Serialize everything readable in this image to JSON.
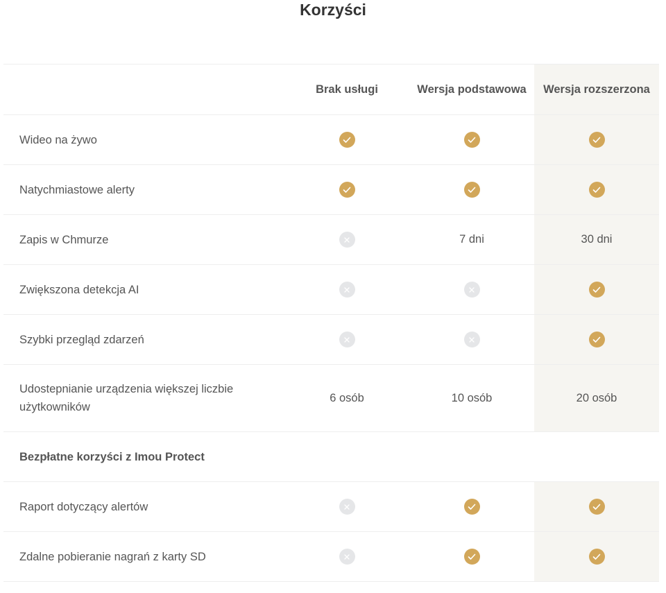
{
  "title": "Korzyści",
  "colors": {
    "accent": "#d2a75a",
    "unavailable": "#e5e6e8",
    "highlight": "#f6f5f1"
  },
  "columns": [
    "",
    "Brak usługi",
    "Wersja podstawowa",
    "Wersja rozszerzona"
  ],
  "rows": [
    {
      "label": "Wideo na żywo",
      "cells": [
        "check",
        "check",
        "check"
      ]
    },
    {
      "label": "Natychmiastowe alerty",
      "cells": [
        "check",
        "check",
        "check"
      ]
    },
    {
      "label": "Zapis w Chmurze",
      "cells": [
        "cross",
        "7 dni",
        "30 dni"
      ]
    },
    {
      "label": "Zwiększona detekcja AI",
      "cells": [
        "cross",
        "cross",
        "check"
      ]
    },
    {
      "label": "Szybki przegląd zdarzeń",
      "cells": [
        "cross",
        "cross",
        "check"
      ]
    },
    {
      "label": "Udostepnianie urządzenia większej liczbie użytkowników",
      "cells": [
        "6 osób",
        "10 osób",
        "20 osób"
      ],
      "tall": true
    }
  ],
  "section": {
    "label": "Bezpłatne korzyści z Imou Protect"
  },
  "section_rows": [
    {
      "label": "Raport dotyczący alertów",
      "cells": [
        "cross",
        "check",
        "check"
      ]
    },
    {
      "label": "Zdalne pobieranie nagrań z karty SD",
      "cells": [
        "cross",
        "check",
        "check"
      ]
    }
  ]
}
